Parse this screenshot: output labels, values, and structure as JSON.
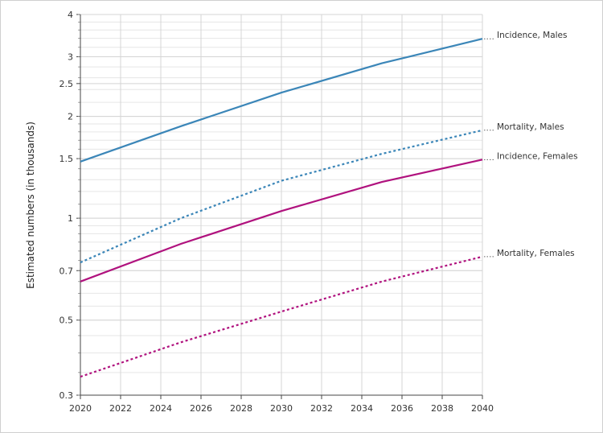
{
  "chart_data": {
    "type": "line",
    "title": "",
    "xlabel": "",
    "ylabel": "Estimated numbers (in thousands)",
    "y_scale": "log",
    "xlim": [
      2020,
      2040
    ],
    "ylim": [
      0.3,
      4
    ],
    "x_ticks": [
      "2020",
      "2022",
      "2024",
      "2026",
      "2028",
      "2030",
      "2032",
      "2034",
      "2036",
      "2038",
      "2040"
    ],
    "y_ticks": [
      {
        "value": 0.3,
        "label": "0.3"
      },
      {
        "value": 0.5,
        "label": "0.5"
      },
      {
        "value": 0.7,
        "label": "0.7"
      },
      {
        "value": 1,
        "label": "1"
      },
      {
        "value": 1.5,
        "label": "1.5"
      },
      {
        "value": 2,
        "label": "2"
      },
      {
        "value": 2.5,
        "label": "2.5"
      },
      {
        "value": 3,
        "label": "3"
      },
      {
        "value": 4,
        "label": "4"
      }
    ],
    "grid": true,
    "legend": "direct labels at line ends (right)",
    "x": [
      2020,
      2025,
      2030,
      2035,
      2040
    ],
    "series": [
      {
        "name": "Incidence, Males",
        "color": "#3b86b8",
        "style": "solid",
        "values": [
          1.47,
          1.87,
          2.35,
          2.87,
          3.39
        ]
      },
      {
        "name": "Mortality, Males",
        "color": "#3b86b8",
        "style": "dotted",
        "values": [
          0.74,
          1.0,
          1.29,
          1.55,
          1.82
        ]
      },
      {
        "name": "Incidence, Females",
        "color": "#b0127e",
        "style": "solid",
        "values": [
          0.65,
          0.84,
          1.05,
          1.28,
          1.49
        ]
      },
      {
        "name": "Mortality, Females",
        "color": "#b0127e",
        "style": "dotted",
        "values": [
          0.34,
          0.43,
          0.53,
          0.65,
          0.77
        ]
      }
    ]
  }
}
